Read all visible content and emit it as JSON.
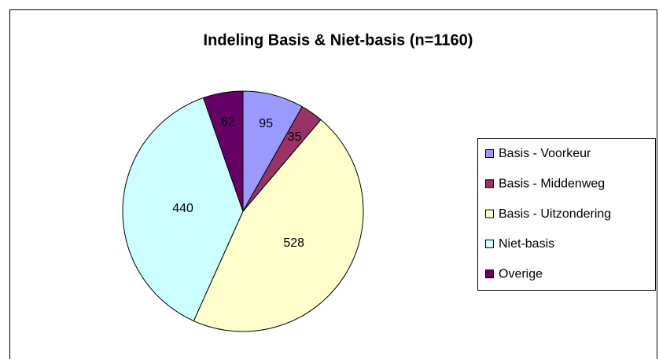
{
  "chart_data": {
    "type": "pie",
    "title": "Indeling Basis & Niet-basis (n=1160)",
    "categories": [
      "Basis - Voorkeur",
      "Basis - Middenweg",
      "Basis - Uitzondering",
      "Niet-basis",
      "Overige"
    ],
    "values": [
      95,
      35,
      528,
      440,
      62
    ],
    "colors": [
      "#9999ff",
      "#993366",
      "#ffffcc",
      "#ccffff",
      "#660066"
    ],
    "legend": "right"
  }
}
